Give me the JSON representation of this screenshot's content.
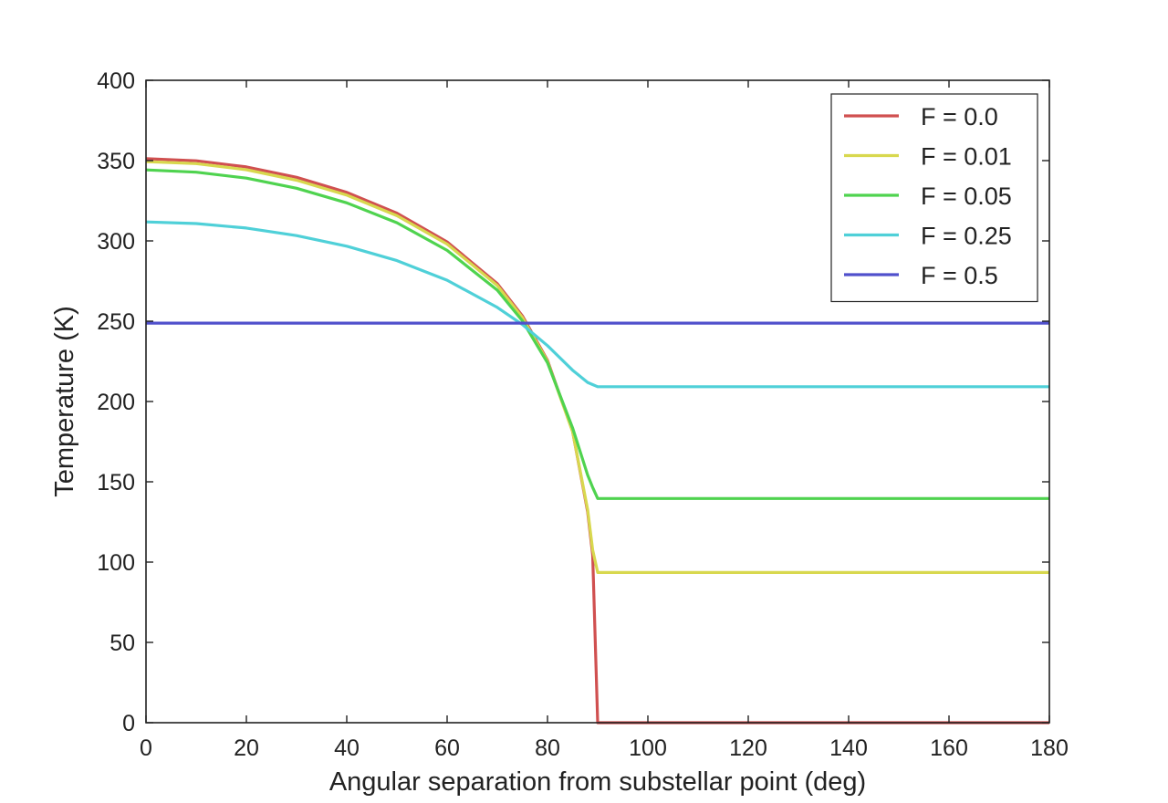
{
  "chart_data": {
    "type": "line",
    "title": "",
    "xlabel": "Angular separation from substellar point (deg)",
    "ylabel": "Temperature (K)",
    "xlim": [
      0,
      180
    ],
    "ylim": [
      0,
      400
    ],
    "xticks": [
      0,
      20,
      40,
      60,
      80,
      100,
      120,
      140,
      160,
      180
    ],
    "yticks": [
      0,
      50,
      100,
      150,
      200,
      250,
      300,
      350,
      400
    ],
    "grid": false,
    "legend_position": "top-right",
    "x": [
      0,
      10,
      20,
      30,
      40,
      50,
      60,
      70,
      75,
      80,
      85,
      88,
      89,
      90,
      180
    ],
    "series": [
      {
        "name": "F = 0.0",
        "color": "#d05050",
        "values": [
          351.2,
          349.9,
          346.1,
          339.6,
          330.2,
          317.3,
          299.4,
          273.4,
          253.3,
          225.6,
          181.4,
          131.3,
          104.5,
          0,
          0
        ]
      },
      {
        "name": "F = 0.01",
        "color": "#d8d84e",
        "values": [
          349.4,
          348.1,
          344.3,
          337.8,
          328.5,
          315.7,
          298.0,
          272.2,
          252.3,
          224.9,
          181.3,
          132.7,
          107.6,
          93.5,
          93.5
        ]
      },
      {
        "name": "F = 0.05",
        "color": "#4fd34f",
        "values": [
          344.2,
          342.8,
          339.1,
          332.8,
          323.7,
          311.3,
          294.1,
          269.3,
          250.2,
          224.1,
          183.6,
          154.2,
          146.5,
          139.6,
          139.6
        ]
      },
      {
        "name": "F = 0.25",
        "color": "#4fd0d8",
        "values": [
          311.8,
          310.8,
          308.0,
          303.3,
          296.7,
          287.7,
          275.5,
          258.6,
          247.9,
          234.8,
          219.5,
          211.9,
          210.5,
          209.2,
          209.2
        ]
      },
      {
        "name": "F = 0.5",
        "color": "#5050cc",
        "values": [
          248.8,
          248.8,
          248.8,
          248.8,
          248.8,
          248.8,
          248.8,
          248.8,
          248.8,
          248.8,
          248.8,
          248.8,
          248.8,
          248.8,
          248.8
        ]
      }
    ]
  }
}
